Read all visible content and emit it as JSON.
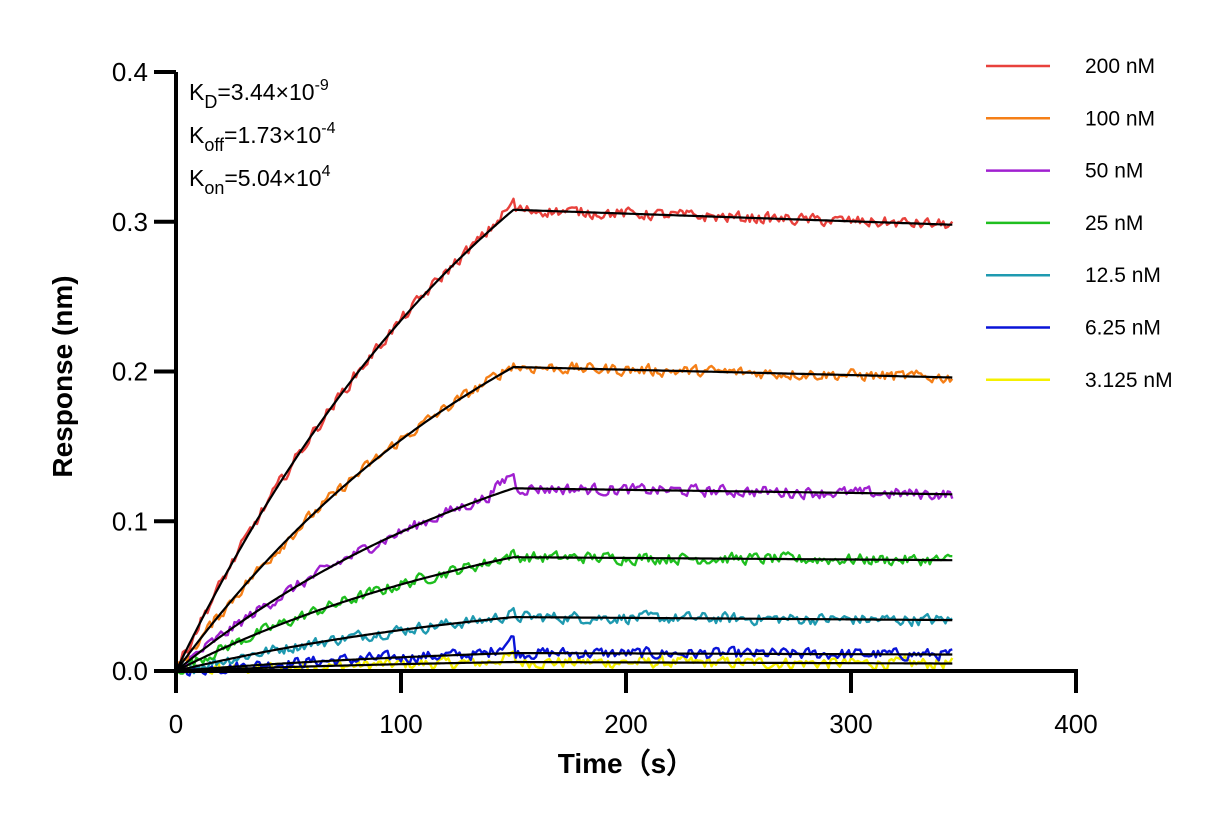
{
  "chart_data": {
    "type": "line",
    "xlabel": "Time（s）",
    "ylabel": "Response (nm)",
    "xlim": [
      0,
      400
    ],
    "ylim": [
      0,
      0.4
    ],
    "xticks": [
      0,
      100,
      200,
      300,
      400
    ],
    "yticks": [
      0.0,
      0.1,
      0.2,
      0.3,
      0.4
    ],
    "xtick_labels": [
      "0",
      "100",
      "200",
      "300",
      "400"
    ],
    "ytick_labels": [
      "0.0",
      "0.1",
      "0.2",
      "0.3",
      "0.4"
    ],
    "grid": false,
    "legend_position": "right",
    "association_end": 150,
    "data_end": 345,
    "kinetics": [
      {
        "name": "K",
        "sub": "D",
        "value": "=3.44×10",
        "exp": "-9"
      },
      {
        "name": "K",
        "sub": "off",
        "value": "=1.73×10",
        "exp": "-4"
      },
      {
        "name": "K",
        "sub": "on",
        "value": "=5.04×10",
        "exp": "4"
      }
    ],
    "series": [
      {
        "name": "200 nM",
        "color": "#e8413c",
        "plateau": 0.308,
        "end": 0.298,
        "peak": 0.313
      },
      {
        "name": "100 nM",
        "color": "#f57f17",
        "plateau": 0.203,
        "end": 0.196,
        "peak": 0.205
      },
      {
        "name": "50 nM",
        "color": "#a020d0",
        "plateau": 0.122,
        "end": 0.118,
        "peak": 0.133
      },
      {
        "name": "25 nM",
        "color": "#1fbf1f",
        "plateau": 0.076,
        "end": 0.074,
        "peak": 0.078
      },
      {
        "name": "12.5 nM",
        "color": "#1f9ab0",
        "plateau": 0.036,
        "end": 0.034,
        "peak": 0.038
      },
      {
        "name": "6.25 nM",
        "color": "#0a14d8",
        "plateau": 0.012,
        "end": 0.011,
        "peak": 0.022
      },
      {
        "name": "3.125 nM",
        "color": "#f5f000",
        "plateau": 0.006,
        "end": 0.005,
        "peak": 0.01
      }
    ]
  }
}
